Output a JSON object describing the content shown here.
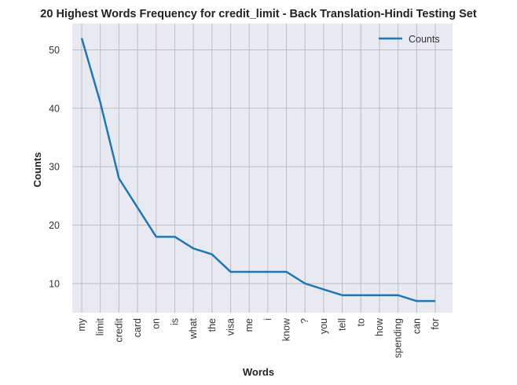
{
  "chart_data": {
    "type": "line",
    "title": "20 Highest Words Frequency for credit_limit - Back Translation-Hindi Testing Set",
    "xlabel": "Words",
    "ylabel": "Counts",
    "categories": [
      "my",
      "limit",
      "credit",
      "card",
      "on",
      "is",
      "what",
      "the",
      "visa",
      "me",
      "i",
      "know",
      "?",
      "you",
      "tell",
      "to",
      "how",
      "spending",
      "can",
      "for"
    ],
    "series": [
      {
        "name": "Counts",
        "color": "#1f77b4",
        "values": [
          52,
          41,
          28,
          23,
          18,
          18,
          16,
          15,
          12,
          12,
          12,
          12,
          10,
          9,
          8,
          8,
          8,
          8,
          7,
          7
        ]
      }
    ],
    "ylim": [
      5,
      54.5
    ],
    "yticks": [
      10,
      20,
      30,
      40,
      50
    ],
    "grid": true,
    "legend": "top-right",
    "style": {
      "background": "#e9e9f1",
      "grid_color": "#bdbdc4"
    }
  }
}
